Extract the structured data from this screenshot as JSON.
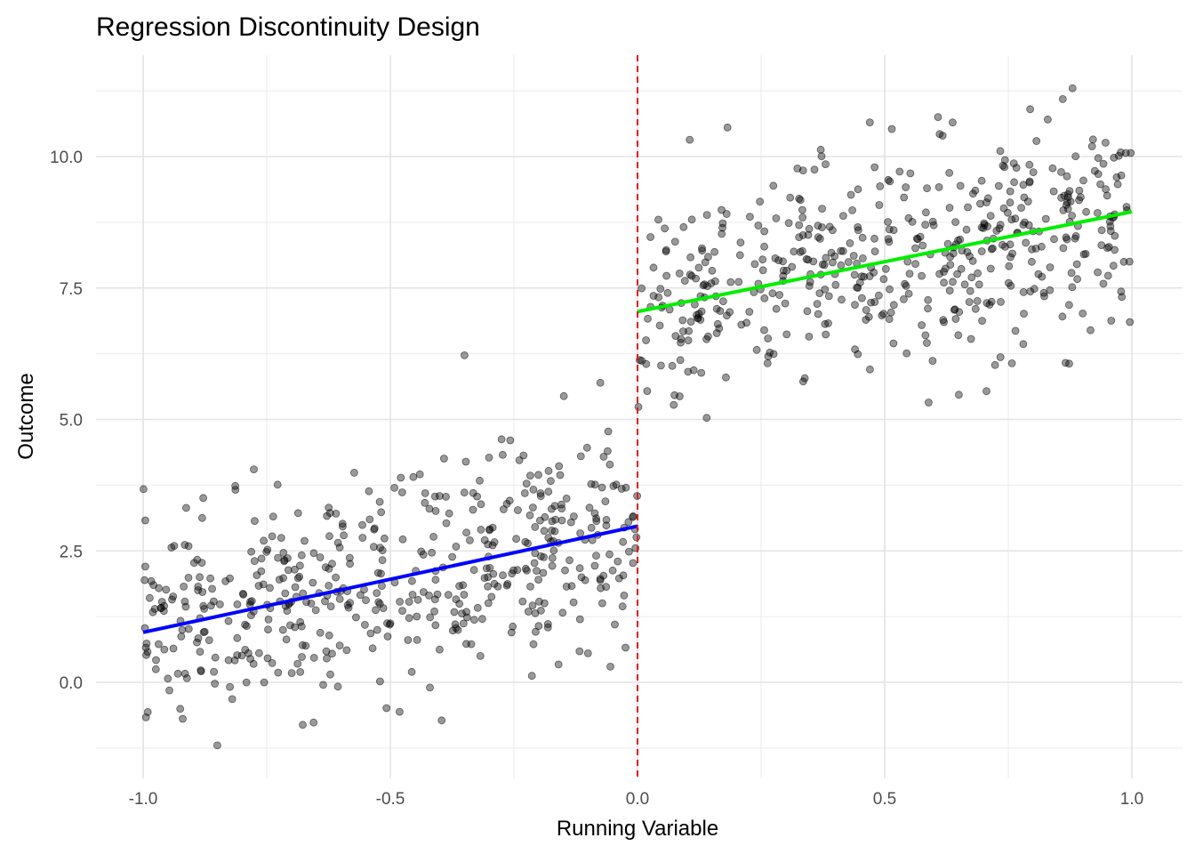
{
  "chart_data": {
    "type": "scatter",
    "title": "Regression Discontinuity Design",
    "xlabel": "Running Variable",
    "ylabel": "Outcome",
    "xlim": [
      -1.0,
      1.0
    ],
    "ylim": [
      -1.3,
      11.4
    ],
    "x_ticks": [
      -1.0,
      -0.5,
      0.0,
      0.5,
      1.0
    ],
    "x_tick_labels": [
      "-1.0",
      "-0.5",
      "0.0",
      "0.5",
      "1.0"
    ],
    "y_ticks": [
      0.0,
      2.5,
      5.0,
      7.5,
      10.0
    ],
    "y_tick_labels": [
      "0.0",
      "2.5",
      "5.0",
      "7.5",
      "10.0"
    ],
    "grid": true,
    "cutoff": {
      "x": 0.0,
      "color": "#e41a1c",
      "style": "dashed"
    },
    "fit_lines": [
      {
        "x": [
          -1.0,
          0.0
        ],
        "y": [
          0.95,
          2.97
        ],
        "color": "#0000ff"
      },
      {
        "x": [
          0.0,
          1.0
        ],
        "y": [
          7.05,
          8.95
        ],
        "color": "#00ee00"
      }
    ],
    "points_left": {
      "n": 500,
      "x_range": [
        -1.0,
        0.0
      ],
      "intercept": 2.97,
      "slope": 2.02,
      "noise_sd": 1.0,
      "extras": [
        [
          -0.35,
          6.22
        ],
        [
          -0.04,
          2.3
        ],
        [
          -0.85,
          -1.2
        ],
        [
          -0.42,
          -0.1
        ]
      ]
    },
    "points_right": {
      "n": 500,
      "x_range": [
        0.0,
        1.0
      ],
      "intercept": 7.05,
      "slope": 1.9,
      "noise_sd": 1.0,
      "extras": [
        [
          0.88,
          11.3
        ],
        [
          0.47,
          10.65
        ],
        [
          0.65,
          5.47
        ],
        [
          0.14,
          5.03
        ]
      ]
    },
    "point_color": "#000000",
    "point_opacity": 0.4
  }
}
